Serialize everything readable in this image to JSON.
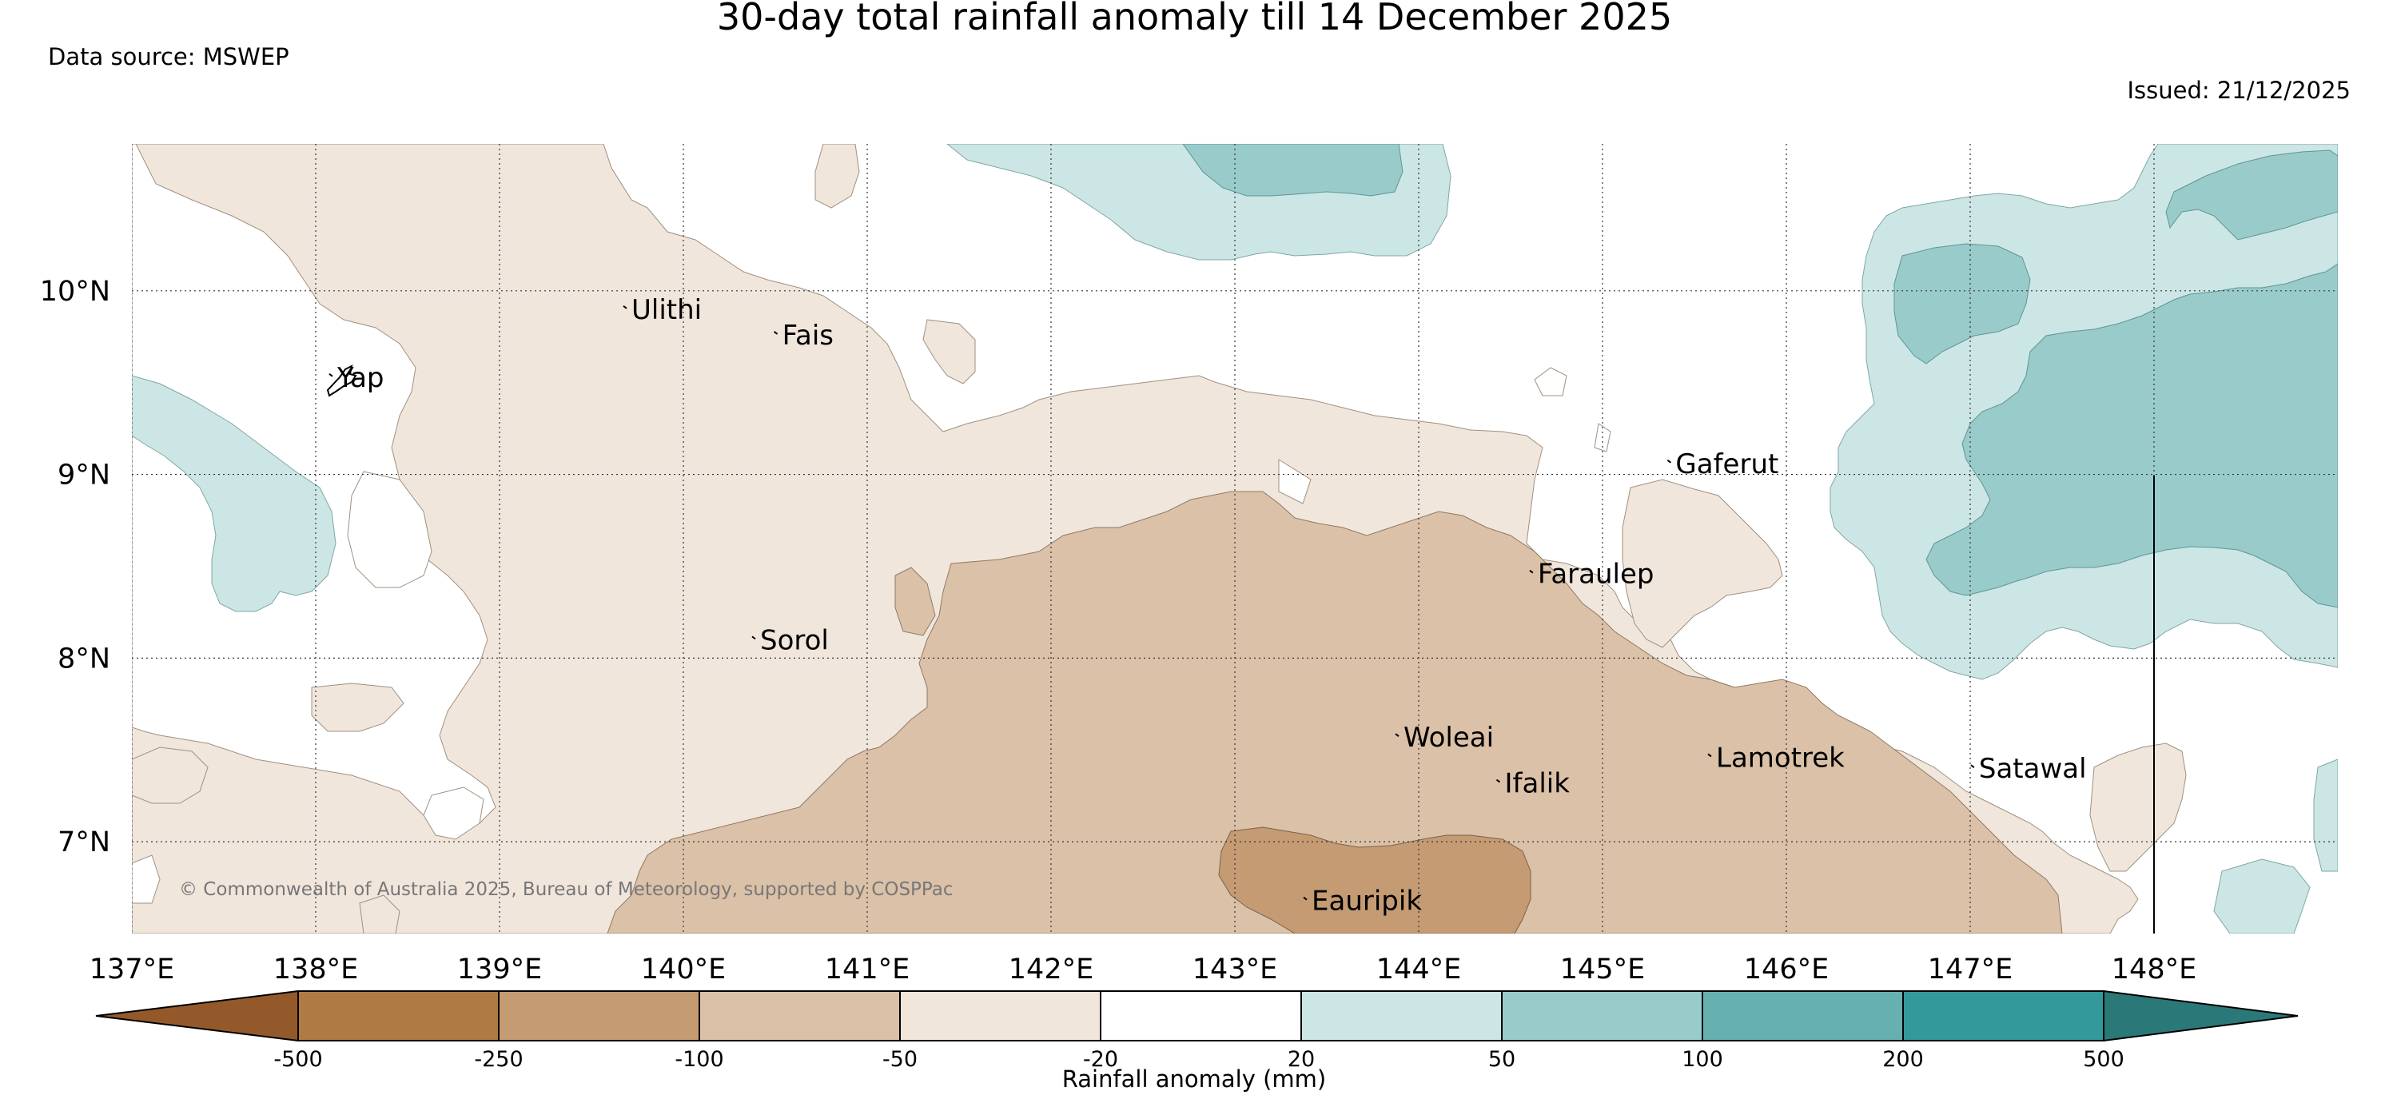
{
  "title": "30-day total rainfall anomaly till 14 December 2025",
  "data_source": "Data source: MSWEP",
  "issued": "Issued: 21/12/2025",
  "copyright": "© Commonwealth of Australia 2025, Bureau of Meteorology, supported by COSPPac",
  "map": {
    "lon_range": [
      137,
      149
    ],
    "lat_range": [
      6.5,
      10.8
    ],
    "gridlines": true,
    "lat_ticks": [
      {
        "value": 10,
        "label": "10°N"
      },
      {
        "value": 9,
        "label": "9°N"
      },
      {
        "value": 8,
        "label": "8°N"
      },
      {
        "value": 7,
        "label": "7°N"
      }
    ],
    "lon_ticks": [
      {
        "value": 137,
        "label": "137°E"
      },
      {
        "value": 138,
        "label": "138°E"
      },
      {
        "value": 139,
        "label": "139°E"
      },
      {
        "value": 140,
        "label": "140°E"
      },
      {
        "value": 141,
        "label": "141°E"
      },
      {
        "value": 142,
        "label": "142°E"
      },
      {
        "value": 143,
        "label": "143°E"
      },
      {
        "value": 144,
        "label": "144°E"
      },
      {
        "value": 145,
        "label": "145°E"
      },
      {
        "value": 146,
        "label": "146°E"
      },
      {
        "value": 147,
        "label": "147°E"
      },
      {
        "value": 148,
        "label": "148°E"
      }
    ],
    "places": [
      {
        "name": "Yap",
        "lon": 138.1,
        "lat": 9.53
      },
      {
        "name": "Ulithi",
        "lon": 139.7,
        "lat": 9.9
      },
      {
        "name": "Fais",
        "lon": 140.52,
        "lat": 9.76
      },
      {
        "name": "Sorol",
        "lon": 140.4,
        "lat": 8.1
      },
      {
        "name": "Gaferut",
        "lon": 145.38,
        "lat": 9.06
      },
      {
        "name": "Faraulep",
        "lon": 144.63,
        "lat": 8.46
      },
      {
        "name": "Woleai",
        "lon": 143.9,
        "lat": 7.57
      },
      {
        "name": "Ifalik",
        "lon": 144.45,
        "lat": 7.32
      },
      {
        "name": "Lamotrek",
        "lon": 145.6,
        "lat": 7.46
      },
      {
        "name": "Satawal",
        "lon": 147.03,
        "lat": 7.4
      },
      {
        "name": "Eauripik",
        "lon": 143.4,
        "lat": 6.68
      }
    ]
  },
  "colorbar": {
    "label": "Rainfall anomaly (mm)",
    "boundaries": [
      "-500",
      "-250",
      "-100",
      "-50",
      "-20",
      "20",
      "50",
      "100",
      "200",
      "500"
    ],
    "colors": [
      "#93592a",
      "#b07a45",
      "#c49b73",
      "#dbc1a7",
      "#f1e6dc",
      "#ffffff",
      "#cce6e5",
      "#9acbcb",
      "#66b1b0",
      "#33999a",
      "#2a7878"
    ]
  }
}
